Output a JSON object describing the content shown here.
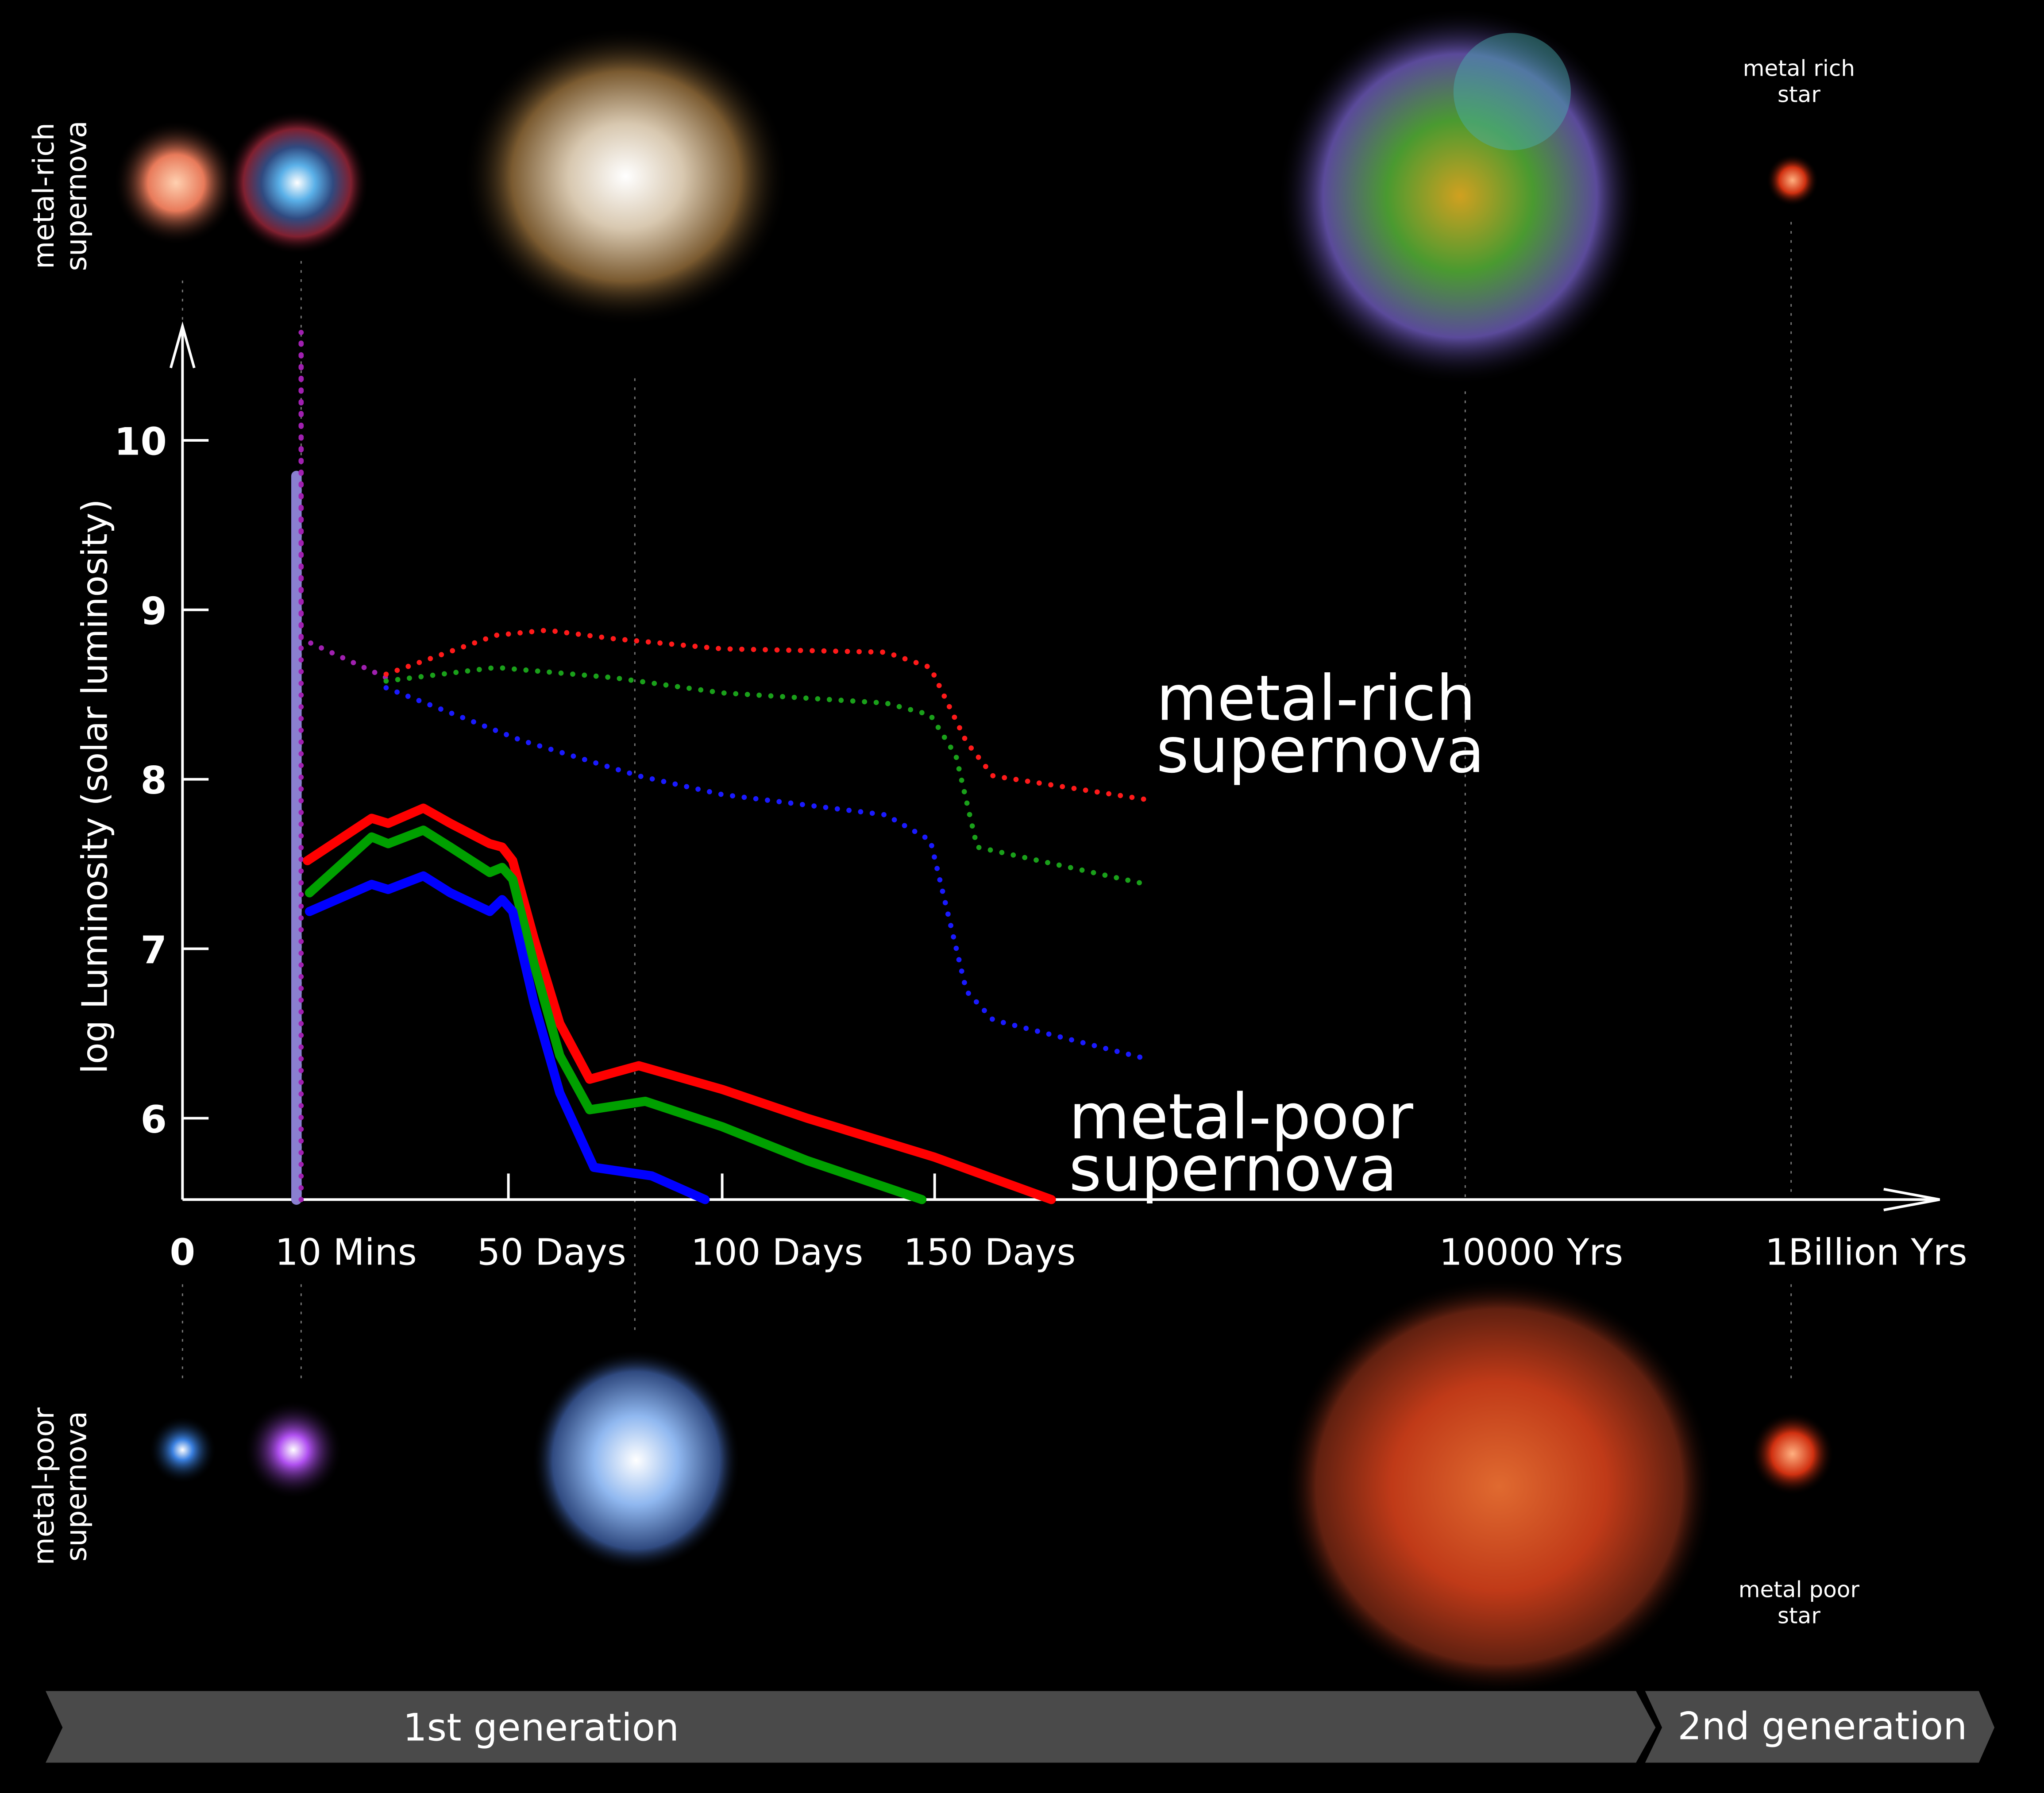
{
  "chart_data": {
    "type": "line",
    "y_label": "log Luminosity (solar luminosity)",
    "ylim": [
      5.52,
      10.7
    ],
    "yticks": [
      6,
      7,
      8,
      9,
      10
    ],
    "xlim": [
      0,
      6.46
    ],
    "xticks": [
      0,
      {
        "value": 1,
        "label": "10 Mins"
      },
      {
        "value": 2,
        "label": "50 Days"
      },
      {
        "value": 3,
        "label": "100 Days"
      },
      {
        "value": 4,
        "label": "150 Days"
      },
      {
        "value": 5,
        "label": "10000 Yrs"
      },
      {
        "value": 6,
        "label": "1Billion Yrs"
      }
    ],
    "series": [
      {
        "color": "#8a7fd0",
        "style": "solid",
        "x": [
          0.96,
          0.96
        ],
        "values": [
          5.52,
          9.79
        ]
      },
      {
        "color": "#a020b0",
        "style": "dotted",
        "x": [
          1.0,
          1.0,
          1.0,
          1.41
        ],
        "values": [
          5.52,
          10.64,
          8.83,
          8.6
        ]
      },
      {
        "color": "#ff1a1a",
        "style": "dotted",
        "x": [
          1.41,
          1.94,
          2.18,
          2.49,
          3.0,
          3.77,
          3.98,
          4.06,
          4.11,
          4.4
        ],
        "values": [
          8.62,
          8.85,
          8.88,
          8.83,
          8.77,
          8.75,
          8.66,
          8.22,
          8.02,
          7.88
        ]
      },
      {
        "color": "#1aa01a",
        "style": "dotted",
        "x": [
          1.41,
          1.94,
          2.49,
          3.0,
          3.77,
          3.98,
          4.04,
          4.08,
          4.4
        ],
        "values": [
          8.58,
          8.66,
          8.6,
          8.51,
          8.45,
          8.38,
          8.14,
          7.6,
          7.38
        ]
      },
      {
        "color": "#1a1aff",
        "style": "dotted",
        "x": [
          1.41,
          2.06,
          2.61,
          3.0,
          3.77,
          3.98,
          4.06,
          4.11,
          4.4
        ],
        "values": [
          8.54,
          8.23,
          8.02,
          7.91,
          7.79,
          7.64,
          6.75,
          6.58,
          6.35
        ]
      },
      {
        "color": "#ff0000",
        "style": "solid",
        "x": [
          1.03,
          1.34,
          1.42,
          1.59,
          1.72,
          1.91,
          1.97,
          2.02,
          2.12,
          2.24,
          2.38,
          2.61,
          3.0,
          3.4,
          4.0,
          4.22
        ],
        "values": [
          7.52,
          7.77,
          7.74,
          7.83,
          7.74,
          7.62,
          7.6,
          7.52,
          7.06,
          6.56,
          6.23,
          6.31,
          6.17,
          6.0,
          5.77,
          5.52
        ]
      },
      {
        "color": "#00a000",
        "style": "solid",
        "x": [
          1.04,
          1.34,
          1.42,
          1.59,
          1.72,
          1.91,
          1.97,
          2.02,
          2.12,
          2.24,
          2.38,
          2.64,
          3.0,
          3.4,
          3.94
        ],
        "values": [
          7.33,
          7.66,
          7.62,
          7.7,
          7.6,
          7.45,
          7.48,
          7.41,
          6.91,
          6.37,
          6.05,
          6.1,
          5.95,
          5.75,
          5.52
        ]
      },
      {
        "color": "#0000ff",
        "style": "solid",
        "x": [
          1.04,
          1.34,
          1.42,
          1.59,
          1.72,
          1.91,
          1.97,
          2.02,
          2.12,
          2.24,
          2.4,
          2.67,
          2.92
        ],
        "values": [
          7.22,
          7.38,
          7.35,
          7.43,
          7.33,
          7.22,
          7.29,
          7.22,
          6.68,
          6.15,
          5.71,
          5.66,
          5.52
        ]
      }
    ],
    "annotations": [
      {
        "lines": [
          "metal-rich",
          "supernova"
        ]
      },
      {
        "lines": [
          "metal-poor",
          "supernova"
        ]
      }
    ]
  },
  "side_labels": {
    "top": [
      "metal-rich",
      "supernova"
    ],
    "bottom": [
      "metal-poor",
      "supernova"
    ]
  },
  "image_labels": {
    "top": [
      "metal rich",
      "star"
    ],
    "bottom": [
      "metal poor",
      "star"
    ]
  },
  "generations": [
    "1st generation",
    "2nd generation"
  ]
}
